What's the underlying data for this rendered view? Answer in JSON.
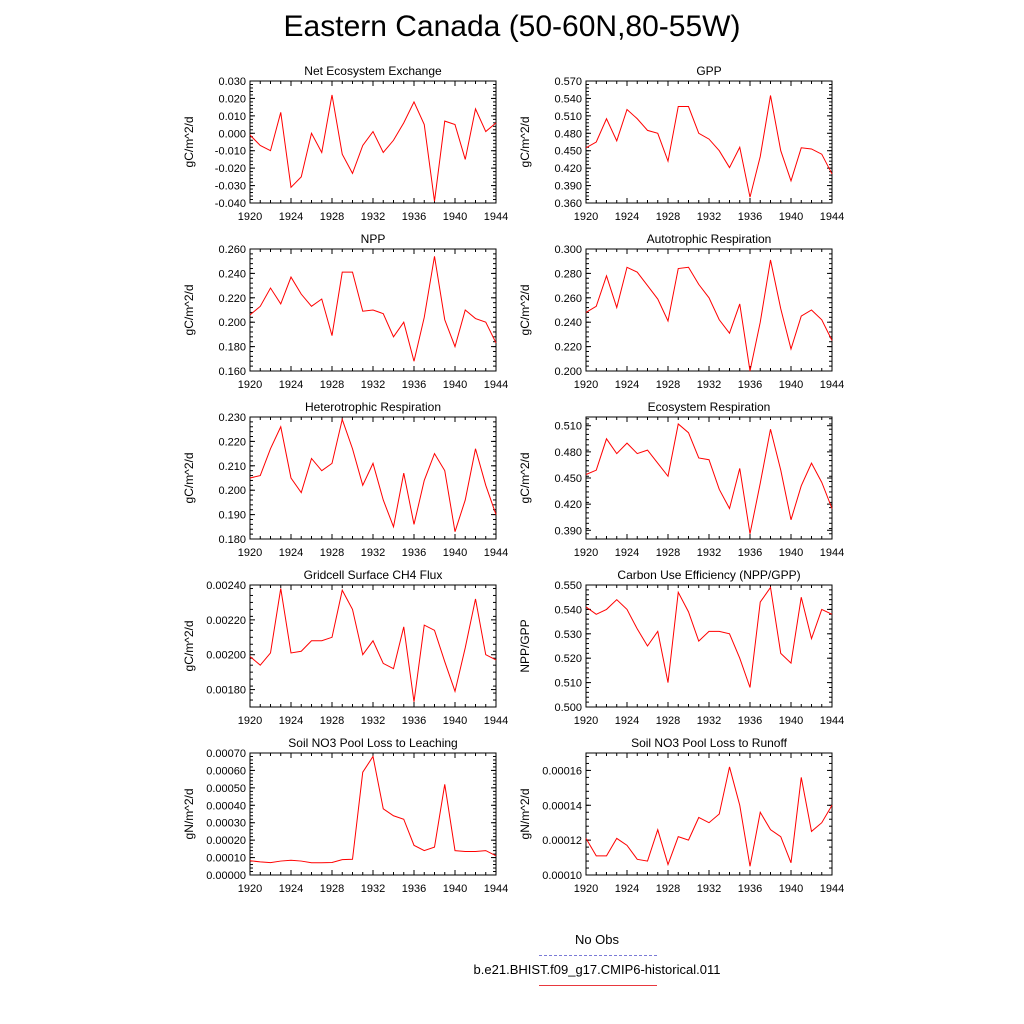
{
  "figure_title": "Eastern Canada (50-60N,80-55W)",
  "legend": {
    "entries": [
      {
        "label": "No Obs",
        "color": "#7b7bd6",
        "style": "dashed"
      },
      {
        "label": "b.e21.BHIST.f09_g17.CMIP6-historical.011",
        "color": "#e8383e",
        "style": "solid"
      }
    ]
  },
  "colors": {
    "series": "#ff0000",
    "axis": "#000000"
  },
  "chart_data": [
    {
      "type": "line",
      "title": "Net Ecosystem Exchange",
      "ylabel": "gC/m^2/d",
      "x": [
        1920,
        1921,
        1922,
        1923,
        1924,
        1925,
        1926,
        1927,
        1928,
        1929,
        1930,
        1931,
        1932,
        1933,
        1934,
        1935,
        1936,
        1937,
        1938,
        1939,
        1940,
        1941,
        1942,
        1943,
        1944
      ],
      "series": [
        {
          "values": [
            -0.001,
            -0.007,
            -0.01,
            0.012,
            -0.031,
            -0.025,
            0.0,
            -0.011,
            0.022,
            -0.012,
            -0.023,
            -0.007,
            0.001,
            -0.011,
            -0.004,
            0.006,
            0.018,
            0.005,
            -0.039,
            0.007,
            0.005,
            -0.015,
            0.014,
            0.001,
            0.006
          ]
        }
      ],
      "xlim": [
        1920,
        1944
      ],
      "ylim": [
        -0.04,
        0.03
      ],
      "xticks": [
        "1920",
        "1924",
        "1928",
        "1932",
        "1936",
        "1940",
        "1944"
      ],
      "yticks": [
        "-0.040",
        "-0.030",
        "-0.020",
        "-0.010",
        "0.000",
        "0.010",
        "0.020",
        "0.030"
      ]
    },
    {
      "type": "line",
      "title": "GPP",
      "ylabel": "gC/m^2/d",
      "x": [
        1920,
        1921,
        1922,
        1923,
        1924,
        1925,
        1926,
        1927,
        1928,
        1929,
        1930,
        1931,
        1932,
        1933,
        1934,
        1935,
        1936,
        1937,
        1938,
        1939,
        1940,
        1941,
        1942,
        1943,
        1944
      ],
      "series": [
        {
          "values": [
            0.455,
            0.465,
            0.505,
            0.467,
            0.521,
            0.505,
            0.485,
            0.48,
            0.432,
            0.526,
            0.526,
            0.48,
            0.47,
            0.45,
            0.421,
            0.456,
            0.37,
            0.44,
            0.545,
            0.45,
            0.398,
            0.455,
            0.453,
            0.444,
            0.41
          ]
        }
      ],
      "xlim": [
        1920,
        1944
      ],
      "ylim": [
        0.36,
        0.57
      ],
      "xticks": [
        "1920",
        "1924",
        "1928",
        "1932",
        "1936",
        "1940",
        "1944"
      ],
      "yticks": [
        "0.360",
        "0.390",
        "0.420",
        "0.450",
        "0.480",
        "0.510",
        "0.540",
        "0.570"
      ]
    },
    {
      "type": "line",
      "title": "NPP",
      "ylabel": "gC/m^2/d",
      "x": [
        1920,
        1921,
        1922,
        1923,
        1924,
        1925,
        1926,
        1927,
        1928,
        1929,
        1930,
        1931,
        1932,
        1933,
        1934,
        1935,
        1936,
        1937,
        1938,
        1939,
        1940,
        1941,
        1942,
        1943,
        1944
      ],
      "series": [
        {
          "values": [
            0.206,
            0.213,
            0.228,
            0.215,
            0.237,
            0.223,
            0.213,
            0.219,
            0.189,
            0.241,
            0.241,
            0.209,
            0.21,
            0.207,
            0.188,
            0.2,
            0.168,
            0.204,
            0.254,
            0.202,
            0.18,
            0.21,
            0.203,
            0.2,
            0.183
          ]
        }
      ],
      "xlim": [
        1920,
        1944
      ],
      "ylim": [
        0.16,
        0.26
      ],
      "xticks": [
        "1920",
        "1924",
        "1928",
        "1932",
        "1936",
        "1940",
        "1944"
      ],
      "yticks": [
        "0.160",
        "0.180",
        "0.200",
        "0.220",
        "0.240",
        "0.260"
      ]
    },
    {
      "type": "line",
      "title": "Autotrophic Respiration",
      "ylabel": "gC/m^2/d",
      "x": [
        1920,
        1921,
        1922,
        1923,
        1924,
        1925,
        1926,
        1927,
        1928,
        1929,
        1930,
        1931,
        1932,
        1933,
        1934,
        1935,
        1936,
        1937,
        1938,
        1939,
        1940,
        1941,
        1942,
        1943,
        1944
      ],
      "series": [
        {
          "values": [
            0.248,
            0.253,
            0.278,
            0.252,
            0.285,
            0.281,
            0.27,
            0.259,
            0.241,
            0.284,
            0.285,
            0.271,
            0.26,
            0.242,
            0.231,
            0.255,
            0.2,
            0.24,
            0.291,
            0.251,
            0.218,
            0.245,
            0.25,
            0.242,
            0.225
          ]
        }
      ],
      "xlim": [
        1920,
        1944
      ],
      "ylim": [
        0.2,
        0.3
      ],
      "xticks": [
        "1920",
        "1924",
        "1928",
        "1932",
        "1936",
        "1940",
        "1944"
      ],
      "yticks": [
        "0.200",
        "0.220",
        "0.240",
        "0.260",
        "0.280",
        "0.300"
      ]
    },
    {
      "type": "line",
      "title": "Heterotrophic Respiration",
      "ylabel": "gC/m^2/d",
      "x": [
        1920,
        1921,
        1922,
        1923,
        1924,
        1925,
        1926,
        1927,
        1928,
        1929,
        1930,
        1931,
        1932,
        1933,
        1934,
        1935,
        1936,
        1937,
        1938,
        1939,
        1940,
        1941,
        1942,
        1943,
        1944
      ],
      "series": [
        {
          "values": [
            0.205,
            0.206,
            0.217,
            0.226,
            0.205,
            0.199,
            0.213,
            0.208,
            0.211,
            0.229,
            0.217,
            0.202,
            0.211,
            0.196,
            0.185,
            0.207,
            0.186,
            0.204,
            0.215,
            0.208,
            0.183,
            0.196,
            0.217,
            0.202,
            0.19
          ]
        }
      ],
      "xlim": [
        1920,
        1944
      ],
      "ylim": [
        0.18,
        0.23
      ],
      "xticks": [
        "1920",
        "1924",
        "1928",
        "1932",
        "1936",
        "1940",
        "1944"
      ],
      "yticks": [
        "0.180",
        "0.190",
        "0.200",
        "0.210",
        "0.220",
        "0.230"
      ]
    },
    {
      "type": "line",
      "title": "Ecosystem Respiration",
      "ylabel": "gC/m^2/d",
      "x": [
        1920,
        1921,
        1922,
        1923,
        1924,
        1925,
        1926,
        1927,
        1928,
        1929,
        1930,
        1931,
        1932,
        1933,
        1934,
        1935,
        1936,
        1937,
        1938,
        1939,
        1940,
        1941,
        1942,
        1943,
        1944
      ],
      "series": [
        {
          "values": [
            0.454,
            0.459,
            0.495,
            0.478,
            0.49,
            0.478,
            0.482,
            0.467,
            0.452,
            0.512,
            0.502,
            0.473,
            0.471,
            0.437,
            0.415,
            0.461,
            0.386,
            0.444,
            0.506,
            0.459,
            0.402,
            0.441,
            0.467,
            0.445,
            0.415
          ]
        }
      ],
      "xlim": [
        1920,
        1944
      ],
      "ylim": [
        0.38,
        0.52
      ],
      "xticks": [
        "1920",
        "1924",
        "1928",
        "1932",
        "1936",
        "1940",
        "1944"
      ],
      "yticks": [
        "0.390",
        "0.420",
        "0.450",
        "0.480",
        "0.510"
      ]
    },
    {
      "type": "line",
      "title": "Gridcell Surface CH4 Flux",
      "ylabel": "gC/m^2/d",
      "x": [
        1920,
        1921,
        1922,
        1923,
        1924,
        1925,
        1926,
        1927,
        1928,
        1929,
        1930,
        1931,
        1932,
        1933,
        1934,
        1935,
        1936,
        1937,
        1938,
        1939,
        1940,
        1941,
        1942,
        1943,
        1944
      ],
      "series": [
        {
          "values": [
            0.00199,
            0.00194,
            0.00201,
            0.00238,
            0.00201,
            0.00202,
            0.00208,
            0.00208,
            0.0021,
            0.00237,
            0.00226,
            0.002,
            0.00208,
            0.00195,
            0.00192,
            0.00216,
            0.00173,
            0.00217,
            0.00214,
            0.00196,
            0.00179,
            0.00204,
            0.00232,
            0.002,
            0.00197
          ]
        }
      ],
      "xlim": [
        1920,
        1944
      ],
      "ylim": [
        0.0017,
        0.0024
      ],
      "xticks": [
        "1920",
        "1924",
        "1928",
        "1932",
        "1936",
        "1940",
        "1944"
      ],
      "yticks": [
        "0.00180",
        "0.00200",
        "0.00220",
        "0.00240"
      ]
    },
    {
      "type": "line",
      "title": "Carbon Use Efficiency (NPP/GPP)",
      "ylabel": "NPP/GPP",
      "x": [
        1920,
        1921,
        1922,
        1923,
        1924,
        1925,
        1926,
        1927,
        1928,
        1929,
        1930,
        1931,
        1932,
        1933,
        1934,
        1935,
        1936,
        1937,
        1938,
        1939,
        1940,
        1941,
        1942,
        1943,
        1944
      ],
      "series": [
        {
          "values": [
            0.541,
            0.538,
            0.54,
            0.544,
            0.54,
            0.532,
            0.525,
            0.531,
            0.51,
            0.547,
            0.539,
            0.527,
            0.531,
            0.531,
            0.53,
            0.52,
            0.508,
            0.543,
            0.549,
            0.522,
            0.518,
            0.545,
            0.528,
            0.54,
            0.538
          ]
        }
      ],
      "xlim": [
        1920,
        1944
      ],
      "ylim": [
        0.5,
        0.55
      ],
      "xticks": [
        "1920",
        "1924",
        "1928",
        "1932",
        "1936",
        "1940",
        "1944"
      ],
      "yticks": [
        "0.500",
        "0.510",
        "0.520",
        "0.530",
        "0.540",
        "0.550"
      ]
    },
    {
      "type": "line",
      "title": "Soil NO3 Pool Loss to Leaching",
      "ylabel": "gN/m^2/d",
      "x": [
        1920,
        1921,
        1922,
        1923,
        1924,
        1925,
        1926,
        1927,
        1928,
        1929,
        1930,
        1931,
        1932,
        1933,
        1934,
        1935,
        1936,
        1937,
        1938,
        1939,
        1940,
        1941,
        1942,
        1943,
        1944
      ],
      "series": [
        {
          "values": [
            8.2e-05,
            7.5e-05,
            7.1e-05,
            8e-05,
            8.5e-05,
            8e-05,
            7e-05,
            7e-05,
            7.2e-05,
            8.8e-05,
            9e-05,
            0.00059,
            0.00068,
            0.00038,
            0.00034,
            0.00032,
            0.00017,
            0.00014,
            0.00016,
            0.00052,
            0.00014,
            0.000135,
            0.000135,
            0.00014,
            0.00011
          ]
        }
      ],
      "xlim": [
        1920,
        1944
      ],
      "ylim": [
        0.0,
        0.0007
      ],
      "xticks": [
        "1920",
        "1924",
        "1928",
        "1932",
        "1936",
        "1940",
        "1944"
      ],
      "yticks": [
        "0.00000",
        "0.00010",
        "0.00020",
        "0.00030",
        "0.00040",
        "0.00050",
        "0.00060",
        "0.00070"
      ]
    },
    {
      "type": "line",
      "title": "Soil NO3 Pool Loss to Runoff",
      "ylabel": "gN/m^2/d",
      "x": [
        1920,
        1921,
        1922,
        1923,
        1924,
        1925,
        1926,
        1927,
        1928,
        1929,
        1930,
        1931,
        1932,
        1933,
        1934,
        1935,
        1936,
        1937,
        1938,
        1939,
        1940,
        1941,
        1942,
        1943,
        1944
      ],
      "series": [
        {
          "values": [
            0.000121,
            0.000111,
            0.000111,
            0.000121,
            0.000117,
            0.000109,
            0.000108,
            0.000126,
            0.000106,
            0.000122,
            0.00012,
            0.000133,
            0.00013,
            0.000135,
            0.000162,
            0.00014,
            0.000105,
            0.000136,
            0.000126,
            0.000122,
            0.000107,
            0.000156,
            0.000125,
            0.00013,
            0.00014
          ]
        }
      ],
      "xlim": [
        1920,
        1944
      ],
      "ylim": [
        0.0001,
        0.00017
      ],
      "xticks": [
        "1920",
        "1924",
        "1928",
        "1932",
        "1936",
        "1940",
        "1944"
      ],
      "yticks": [
        "0.00010",
        "0.00012",
        "0.00014",
        "0.00016"
      ]
    }
  ]
}
